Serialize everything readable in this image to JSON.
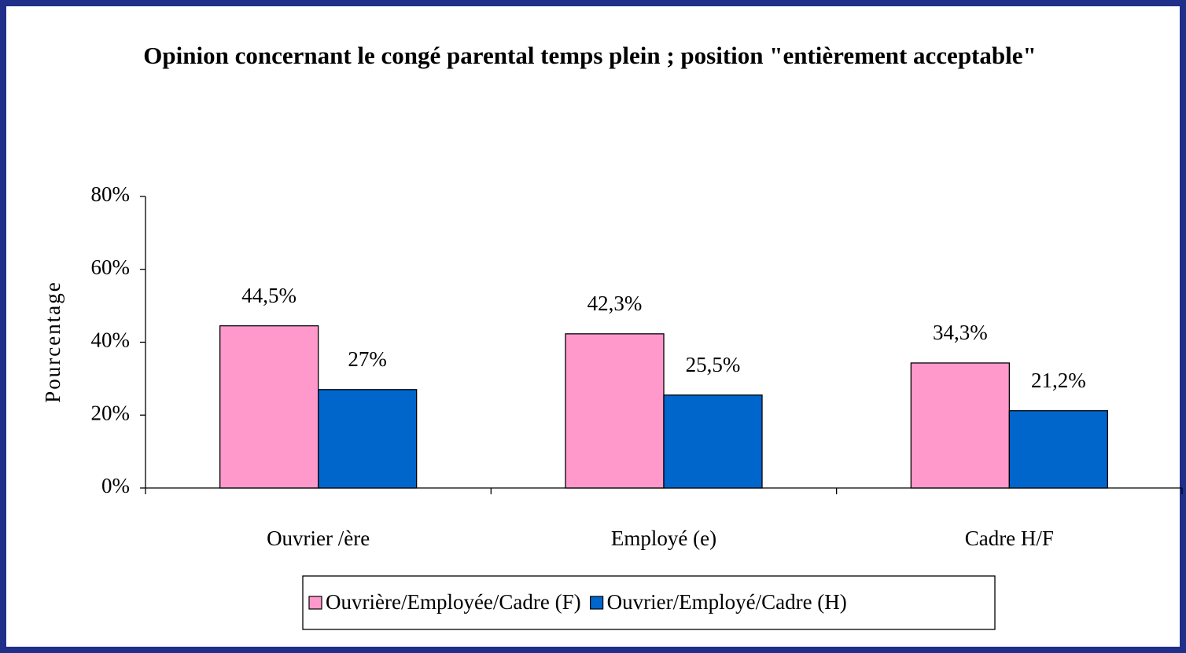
{
  "chart_data": {
    "type": "bar",
    "title": "Opinion concernant le congé parental temps plein ; position \"entièrement acceptable\"",
    "y_label": "Pourcentage",
    "categories": [
      "Ouvrier /ère",
      "Employé (e)",
      "Cadre H/F"
    ],
    "series": [
      {
        "name": "Ouvrière/Employée/Cadre (F)",
        "color": "#ff99cc",
        "values": [
          44.5,
          42.3,
          34.3
        ],
        "value_labels": [
          "44,5%",
          "42,3%",
          "34,3%"
        ]
      },
      {
        "name": "Ouvrier/Employé/Cadre (H)",
        "color": "#0066cc",
        "values": [
          27,
          25.5,
          21.2
        ],
        "value_labels": [
          "27%",
          "25,5%",
          "21,2%"
        ]
      }
    ],
    "ylim": [
      0,
      80
    ],
    "yticks": [
      {
        "value": 0,
        "label": "0%"
      },
      {
        "value": 20,
        "label": "20%"
      },
      {
        "value": 40,
        "label": "40%"
      },
      {
        "value": 60,
        "label": "60%"
      },
      {
        "value": 80,
        "label": "80%"
      }
    ],
    "legend": "bottom"
  }
}
